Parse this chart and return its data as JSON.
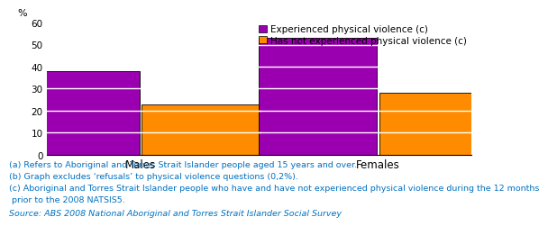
{
  "categories": [
    "Males",
    "Females"
  ],
  "experienced_values": [
    38,
    53
  ],
  "not_experienced_values": [
    23,
    28
  ],
  "bar_color_experienced": "#9B00B0",
  "bar_color_not_experienced": "#FF8C00",
  "bar_edge_color": "#000000",
  "segment_interval": 10,
  "ylim": [
    0,
    60
  ],
  "yticks": [
    0,
    10,
    20,
    30,
    40,
    50,
    60
  ],
  "ylabel": "%",
  "legend_labels": [
    "Experienced physical violence (c)",
    "Has not experienced physical violence (c)"
  ],
  "footnote_lines": [
    "(a) Refers to Aboriginal and Torres Strait Islander people aged 15 years and over.",
    "(b) Graph excludes ‘refusals’ to physical violence questions (0,2%).",
    "(c) Aboriginal and Torres Strait Islander people who have and have not experienced physical violence during the 12 months",
    " prior to the 2008 NATSIS5."
  ],
  "source_line": "Source: ABS 2008 National Aboriginal and Torres Strait Islander Social Survey",
  "footnote_color": "#0070C0",
  "bar_width": 0.28,
  "bar_gap": 0.005,
  "x_positions": [
    0.22,
    0.78
  ],
  "xlim": [
    0.0,
    1.0
  ],
  "background_color": "#ffffff",
  "axis_label_fontsize": 8,
  "tick_fontsize": 7.5,
  "legend_fontsize": 7.5,
  "footnote_fontsize": 6.8,
  "xtick_fontsize": 8.5
}
